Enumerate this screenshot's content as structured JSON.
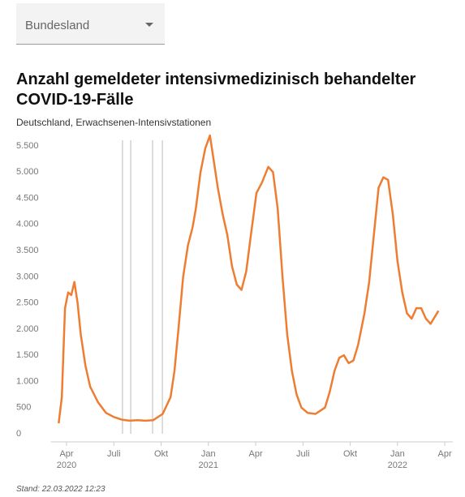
{
  "dropdown": {
    "label": "Bundesland"
  },
  "chart_data": {
    "type": "line",
    "title": "Anzahl gemeldeter intensivmedizinisch behandelter COVID-19-Fälle",
    "subtitle": "Deutschland, Erwachsenen-Intensivstationen",
    "x": [
      2.5,
      2.7,
      2.9,
      3.1,
      3.3,
      3.5,
      3.7,
      3.9,
      4.2,
      4.5,
      5.0,
      5.5,
      6.0,
      6.5,
      7.0,
      7.5,
      8.0,
      8.5,
      9.1,
      9.6,
      9.85,
      10.1,
      10.4,
      10.7,
      11.0,
      11.2,
      11.5,
      11.8,
      12.1,
      12.3,
      12.6,
      12.9,
      13.2,
      13.5,
      13.8,
      14.1,
      14.4,
      14.7,
      15.05,
      15.4,
      15.8,
      16.1,
      16.4,
      16.7,
      17.0,
      17.3,
      17.6,
      17.9,
      18.3,
      18.8,
      19.4,
      19.7,
      20.0,
      20.3,
      20.6,
      20.9,
      21.2,
      21.5,
      21.9,
      22.2,
      22.5,
      22.8,
      23.1,
      23.4,
      23.7,
      24.0,
      24.3,
      24.6,
      24.9,
      25.2,
      25.5,
      25.8,
      26.1,
      26.4,
      26.6
    ],
    "series": [
      {
        "color": "#ee7d31",
        "values": [
          200,
          700,
          2400,
          2700,
          2650,
          2900,
          2500,
          1900,
          1300,
          900,
          600,
          400,
          320,
          270,
          250,
          260,
          250,
          260,
          380,
          700,
          1200,
          2000,
          3000,
          3600,
          3950,
          4300,
          5000,
          5450,
          5700,
          5300,
          4700,
          4200,
          3800,
          3200,
          2850,
          2750,
          3100,
          3800,
          4600,
          4800,
          5100,
          5000,
          4300,
          3000,
          1900,
          1200,
          750,
          500,
          400,
          380,
          500,
          800,
          1200,
          1450,
          1500,
          1350,
          1400,
          1700,
          2300,
          2900,
          3800,
          4700,
          4900,
          4850,
          4200,
          3300,
          2700,
          2300,
          2200,
          2400,
          2400,
          2200,
          2100,
          2250,
          2350
        ]
      }
    ],
    "xlim": [
      2,
      27.5
    ],
    "xticks": [
      {
        "value": 3,
        "label": "Apr"
      },
      {
        "value": 6,
        "label": "Juli"
      },
      {
        "value": 9,
        "label": "Okt"
      },
      {
        "value": 12,
        "label": "Jan"
      },
      {
        "value": 15,
        "label": "Apr"
      },
      {
        "value": 18,
        "label": "Juli"
      },
      {
        "value": 21,
        "label": "Okt"
      },
      {
        "value": 24,
        "label": "Jan"
      },
      {
        "value": 27,
        "label": "Apr"
      }
    ],
    "year_labels": [
      {
        "value": 3,
        "label": "2020"
      },
      {
        "value": 12,
        "label": "2021"
      },
      {
        "value": 24,
        "label": "2022"
      }
    ],
    "vertical_lines": [
      6.55,
      7.07,
      8.46,
      9.08
    ],
    "ylim": [
      0,
      5800
    ],
    "yticks": [
      0,
      500,
      {
        "value": 1000,
        "label": "1.000"
      },
      {
        "value": 1500,
        "label": "1.500"
      },
      {
        "value": 2000,
        "label": "2.000"
      },
      {
        "value": 2500,
        "label": "2.500"
      },
      {
        "value": 3000,
        "label": "3.000"
      },
      {
        "value": 3500,
        "label": "3.500"
      },
      {
        "value": 4000,
        "label": "4.000"
      },
      {
        "value": 4500,
        "label": "4.500"
      },
      {
        "value": 5000,
        "label": "5.000"
      },
      {
        "value": 5500,
        "label": "5.500"
      }
    ],
    "grid": false
  },
  "footer": "Stand: 22.03.2022 12:23"
}
